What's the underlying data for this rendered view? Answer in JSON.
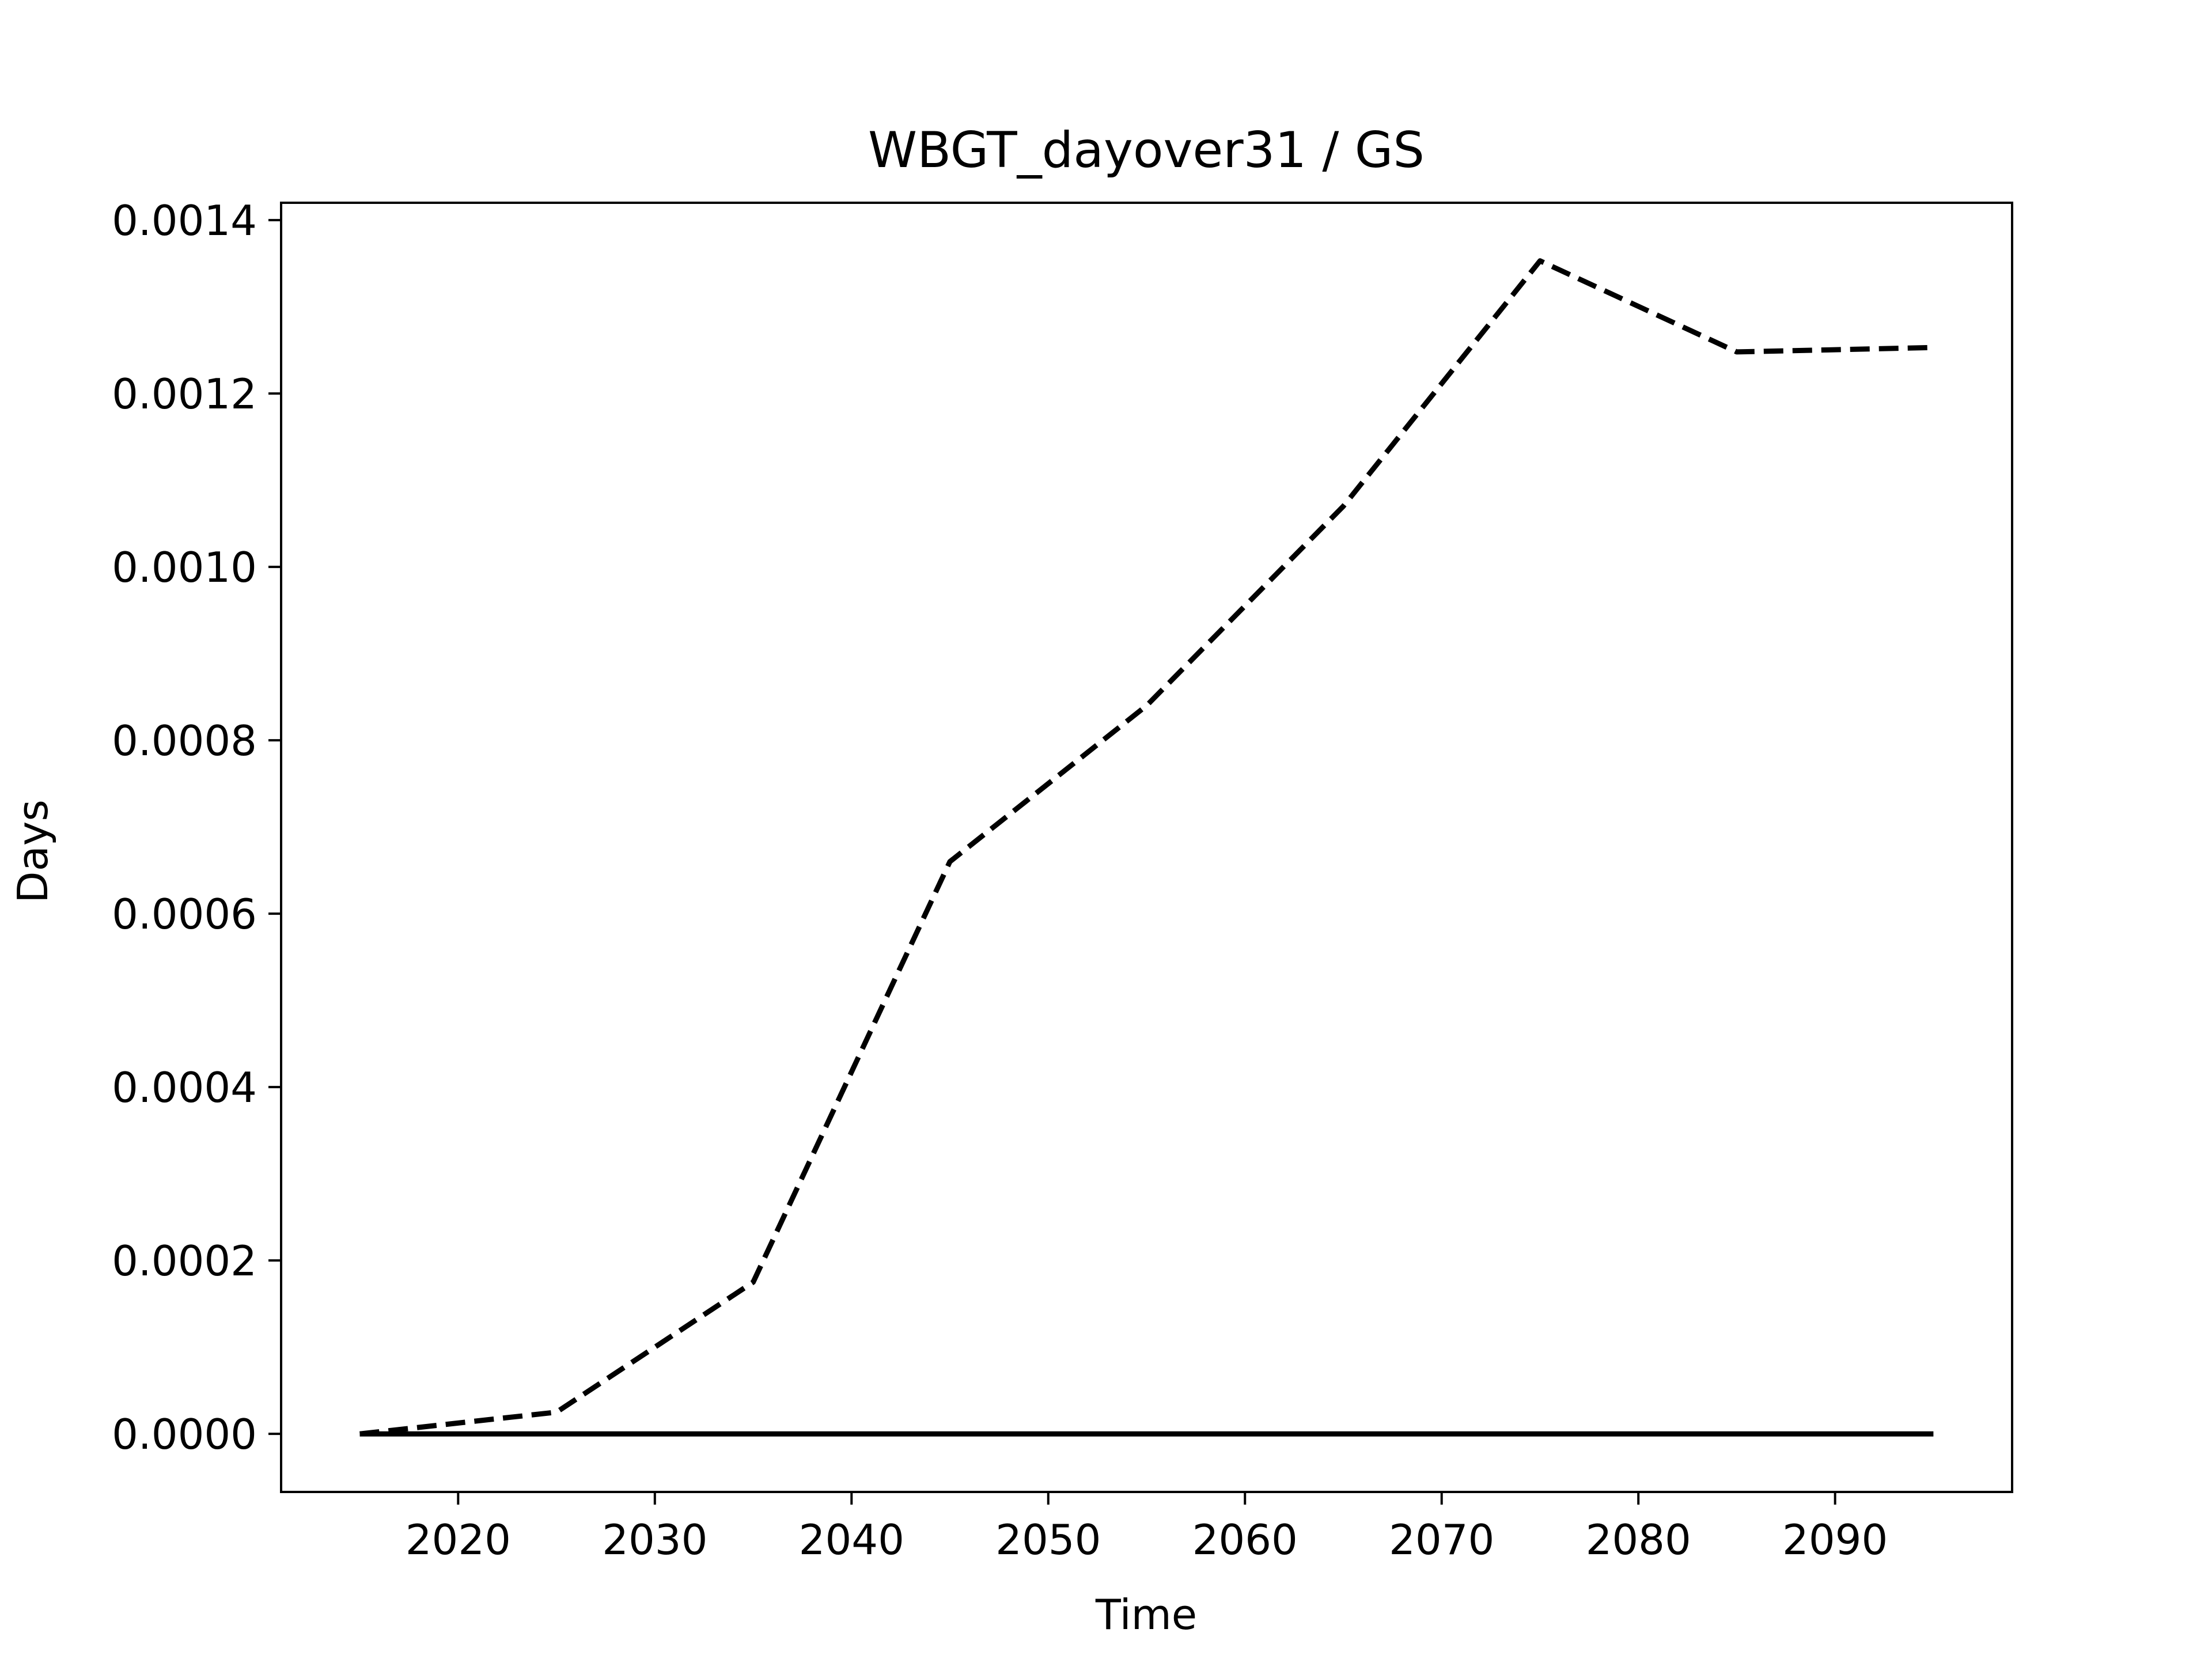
{
  "chart_data": {
    "type": "line",
    "title": "WBGT_dayover31 / GS",
    "xlabel": "Time",
    "ylabel": "Days",
    "xlim": [
      2011,
      2099
    ],
    "ylim": [
      -6.7e-05,
      0.00142
    ],
    "x_ticks": [
      2020,
      2030,
      2040,
      2050,
      2060,
      2070,
      2080,
      2090
    ],
    "y_ticks": [
      0.0,
      0.0002,
      0.0004,
      0.0006,
      0.0008,
      0.001,
      0.0012,
      0.0014
    ],
    "y_tick_labels": [
      "0.0000",
      "0.0002",
      "0.0004",
      "0.0006",
      "0.0008",
      "0.0010",
      "0.0012",
      "0.0014"
    ],
    "x_tick_labels": [
      "2020",
      "2030",
      "2040",
      "2050",
      "2060",
      "2070",
      "2080",
      "2090"
    ],
    "grid": false,
    "series": [
      {
        "style": "dashed",
        "color": "#000000",
        "x": [
          2015,
          2025,
          2035,
          2045,
          2055,
          2065,
          2075,
          2085,
          2095
        ],
        "y": [
          0.0,
          2.5e-05,
          0.000175,
          0.00066,
          0.00084,
          0.00107,
          0.001353,
          0.001248,
          0.001253
        ]
      },
      {
        "style": "solid",
        "color": "#000000",
        "x": [
          2015,
          2025,
          2035,
          2045,
          2055,
          2065,
          2075,
          2085,
          2095
        ],
        "y": [
          0.0,
          0.0,
          0.0,
          0.0,
          0.0,
          0.0,
          0.0,
          0.0,
          0.0
        ]
      }
    ]
  }
}
